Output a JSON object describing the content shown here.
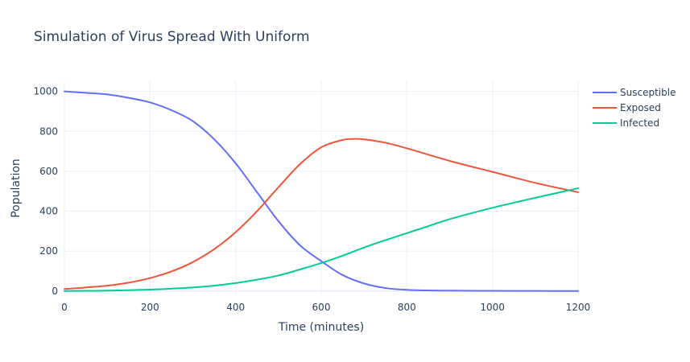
{
  "chart_data": {
    "type": "line",
    "title": "Simulation of Virus Spread With Uniform",
    "xlabel": "Time (minutes)",
    "ylabel": "Population",
    "xlim": [
      0,
      1200
    ],
    "ylim": [
      -25,
      1055
    ],
    "x_ticks": [
      0,
      200,
      400,
      600,
      800,
      1000,
      1200
    ],
    "y_ticks": [
      0,
      200,
      400,
      600,
      800,
      1000
    ],
    "grid": true,
    "legend_position": "top-right",
    "series": [
      {
        "name": "Susceptible",
        "color": "#636efa",
        "x": [
          0,
          50,
          100,
          150,
          200,
          250,
          300,
          350,
          400,
          450,
          500,
          550,
          600,
          650,
          700,
          750,
          800,
          850,
          900,
          1000,
          1100,
          1200
        ],
        "y": [
          1000,
          993,
          985,
          968,
          945,
          906,
          851,
          760,
          640,
          495,
          350,
          230,
          150,
          80,
          38,
          15,
          6,
          3,
          2,
          1,
          0.5,
          0.3
        ]
      },
      {
        "name": "Exposed",
        "color": "#ef553b",
        "x": [
          0,
          50,
          100,
          150,
          200,
          250,
          300,
          350,
          400,
          450,
          500,
          550,
          600,
          650,
          675,
          700,
          750,
          800,
          900,
          1000,
          1100,
          1200
        ],
        "y": [
          10,
          18,
          27,
          42,
          65,
          98,
          145,
          210,
          295,
          400,
          520,
          635,
          720,
          757,
          762,
          760,
          743,
          715,
          652,
          597,
          542,
          495
        ]
      },
      {
        "name": "Infected",
        "color": "#00cc96",
        "x": [
          0,
          50,
          100,
          150,
          200,
          250,
          300,
          350,
          400,
          450,
          500,
          550,
          600,
          650,
          700,
          750,
          800,
          850,
          900,
          1000,
          1100,
          1200
        ],
        "y": [
          0,
          1,
          2,
          4,
          7,
          12,
          18,
          27,
          40,
          57,
          78,
          108,
          140,
          177,
          218,
          255,
          290,
          325,
          360,
          417,
          467,
          515
        ]
      }
    ]
  }
}
